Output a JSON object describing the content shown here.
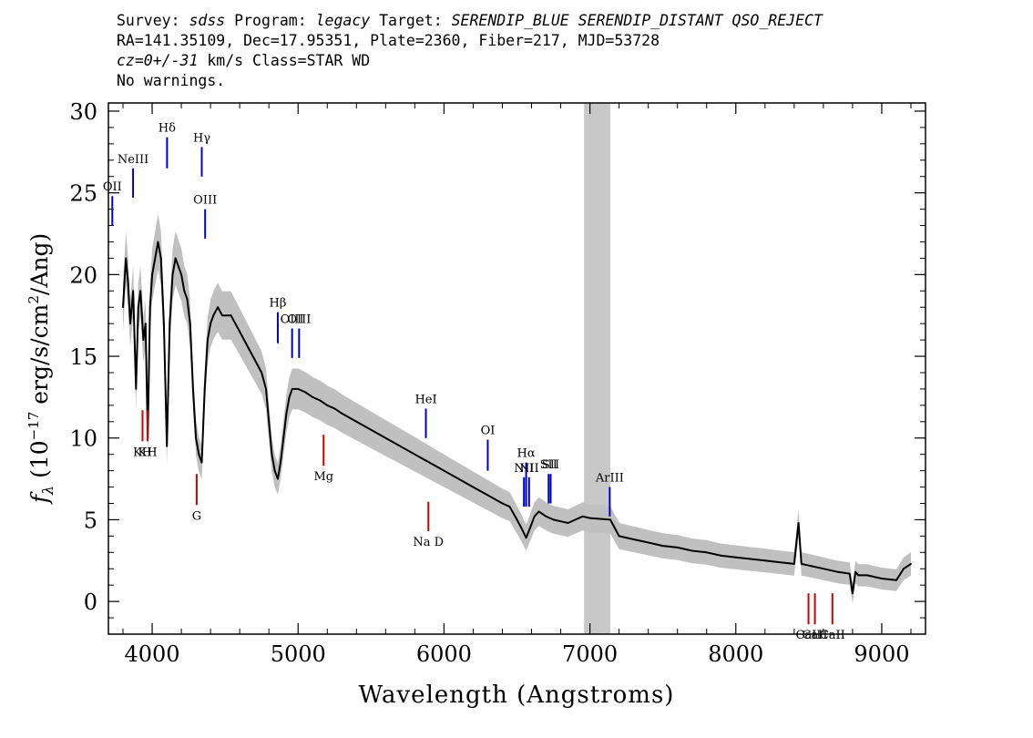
{
  "header": {
    "line1": {
      "survey_label": "Survey: ",
      "survey": "sdss",
      "program_label": " Program: ",
      "program": "legacy",
      "target_label": " Target: ",
      "target": "SERENDIP_BLUE SERENDIP_DISTANT QSO_REJECT"
    },
    "line2": "RA=141.35109, Dec=17.95351, Plate=2360, Fiber=217, MJD=53728",
    "line3": {
      "cz": "cz=0+/-31",
      "rest": " km/s Class=STAR WD"
    },
    "line4": "No warnings."
  },
  "colors": {
    "flux": "#000000",
    "error_band": "#c0c0c0",
    "masked_region": "#c8c8c8",
    "emission_line_marker": "#0000cc",
    "absorption_line_marker": "#cc0000"
  },
  "chart_data": {
    "type": "line",
    "xlabel": "Wavelength (Angstroms)",
    "ylabel": "f_λ (10^-17 erg/s/cm^2/Ang)",
    "ylabel_parts": {
      "f": "f",
      "sub": "λ",
      "pre": " (10",
      "exp1": "−17",
      "mid": " erg/s/cm",
      "exp2": "2",
      "post": "/Ang)"
    },
    "xlim": [
      3700,
      9300
    ],
    "ylim": [
      -2,
      30.5
    ],
    "x_ticks": [
      "4000",
      "5000",
      "6000",
      "7000",
      "8000",
      "9000"
    ],
    "x_tick_values": [
      4000,
      5000,
      6000,
      7000,
      8000,
      9000
    ],
    "y_ticks": [
      "0",
      "5",
      "10",
      "15",
      "20",
      "25",
      "30"
    ],
    "y_tick_values": [
      0,
      5,
      10,
      15,
      20,
      25,
      30
    ],
    "masked_band": [
      6960,
      7140
    ],
    "series": [
      {
        "name": "flux",
        "x": [
          3800,
          3820,
          3835,
          3850,
          3870,
          3889,
          3905,
          3920,
          3940,
          3955,
          3970,
          3985,
          4000,
          4020,
          4040,
          4060,
          4080,
          4101,
          4120,
          4140,
          4160,
          4180,
          4200,
          4220,
          4240,
          4260,
          4280,
          4300,
          4320,
          4340,
          4360,
          4380,
          4400,
          4420,
          4450,
          4480,
          4510,
          4540,
          4570,
          4600,
          4630,
          4660,
          4690,
          4720,
          4750,
          4780,
          4800,
          4820,
          4840,
          4861,
          4880,
          4900,
          4920,
          4940,
          4960,
          4980,
          5000,
          5050,
          5100,
          5150,
          5200,
          5250,
          5300,
          5400,
          5500,
          5600,
          5700,
          5800,
          5900,
          6000,
          6100,
          6200,
          6300,
          6400,
          6450,
          6500,
          6530,
          6563,
          6590,
          6620,
          6650,
          6700,
          6750,
          6800,
          6850,
          6900,
          6950,
          7000,
          7140,
          7200,
          7300,
          7400,
          7500,
          7600,
          7700,
          7800,
          7900,
          8000,
          8100,
          8200,
          8300,
          8400,
          8430,
          8450,
          8500,
          8600,
          8700,
          8780,
          8800,
          8820,
          8840,
          8900,
          9000,
          9100,
          9150,
          9200
        ],
        "y": [
          18,
          21,
          19.5,
          17,
          19,
          13,
          18,
          19,
          16,
          17,
          10,
          18,
          20,
          21,
          22,
          21,
          17,
          9.5,
          17,
          20,
          21,
          20.5,
          20,
          19,
          18.5,
          17,
          13,
          10,
          9,
          8.5,
          13,
          16,
          17,
          17.5,
          18,
          17.5,
          17.5,
          17.5,
          17,
          16.5,
          16,
          15.5,
          15,
          14.5,
          14,
          13,
          11,
          9,
          8,
          7.5,
          8.5,
          10,
          11.5,
          12.5,
          13,
          13,
          13,
          12.8,
          12.5,
          12.3,
          12,
          11.8,
          11.5,
          11,
          10.5,
          10,
          9.5,
          9,
          8.5,
          8,
          7.5,
          7,
          6.5,
          6,
          5.8,
          5,
          4.5,
          3.9,
          4.5,
          5.2,
          5.5,
          5.2,
          5,
          4.9,
          4.8,
          5,
          5.2,
          5.1,
          5,
          4,
          3.8,
          3.6,
          3.4,
          3.3,
          3.1,
          3,
          2.8,
          2.7,
          2.6,
          2.5,
          2.4,
          2.3,
          4.8,
          2.3,
          2.2,
          2,
          1.8,
          1.7,
          0.5,
          1.8,
          1.6,
          1.6,
          1.4,
          1.3,
          2,
          2.3
        ]
      }
    ],
    "line_markers": {
      "emission": [
        {
          "label": "OII",
          "x": 3727,
          "y1": 23.0,
          "y2": 24.8
        },
        {
          "label": "NeIII",
          "x": 3869,
          "y1": 24.7,
          "y2": 26.5
        },
        {
          "label": "Hδ",
          "x": 4102,
          "y1": 26.5,
          "y2": 28.4
        },
        {
          "label": "Hγ",
          "x": 4340,
          "y1": 26.0,
          "y2": 27.8
        },
        {
          "label": "OIII",
          "x": 4363,
          "y1": 22.2,
          "y2": 24.0
        },
        {
          "label": "Hβ",
          "x": 4861,
          "y1": 15.8,
          "y2": 17.7
        },
        {
          "label": "OIII",
          "x": 4959,
          "y1": 14.9,
          "y2": 16.7
        },
        {
          "label": "OIII",
          "x": 5007,
          "y1": 14.9,
          "y2": 16.7
        },
        {
          "label": "HeI",
          "x": 5876,
          "y1": 10.0,
          "y2": 11.8
        },
        {
          "label": "OI",
          "x": 6300,
          "y1": 8.0,
          "y2": 9.9
        },
        {
          "label": "NII",
          "x": 6548,
          "y1": 5.8,
          "y2": 7.6
        },
        {
          "label": "Hα",
          "x": 6563,
          "y1": 5.8,
          "y2": 8.5
        },
        {
          "label": "NII",
          "x": 6583,
          "y1": 5.8,
          "y2": 7.6
        },
        {
          "label": "SII",
          "x": 6717,
          "y1": 6.0,
          "y2": 7.8
        },
        {
          "label": "SII",
          "x": 6731,
          "y1": 6.0,
          "y2": 7.8
        },
        {
          "label": "ArIII",
          "x": 7136,
          "y1": 5.2,
          "y2": 7.0
        }
      ],
      "absorption": [
        {
          "label": "KH",
          "x": 3934,
          "y1": 9.8,
          "y2": 11.7
        },
        {
          "label": "KH",
          "x": 3969,
          "y1": 9.8,
          "y2": 11.7
        },
        {
          "label": "G",
          "x": 4305,
          "y1": 5.9,
          "y2": 7.8
        },
        {
          "label": "Mg",
          "x": 5175,
          "y1": 8.3,
          "y2": 10.2
        },
        {
          "label": "Na D",
          "x": 5893,
          "y1": 4.3,
          "y2": 6.1
        },
        {
          "label": "CaII",
          "x": 8498,
          "y1": -1.4,
          "y2": 0.5
        },
        {
          "label": "CaII",
          "x": 8542,
          "y1": -1.4,
          "y2": 0.5
        },
        {
          "label": "CaII",
          "x": 8662,
          "y1": -1.4,
          "y2": 0.5
        }
      ]
    }
  }
}
